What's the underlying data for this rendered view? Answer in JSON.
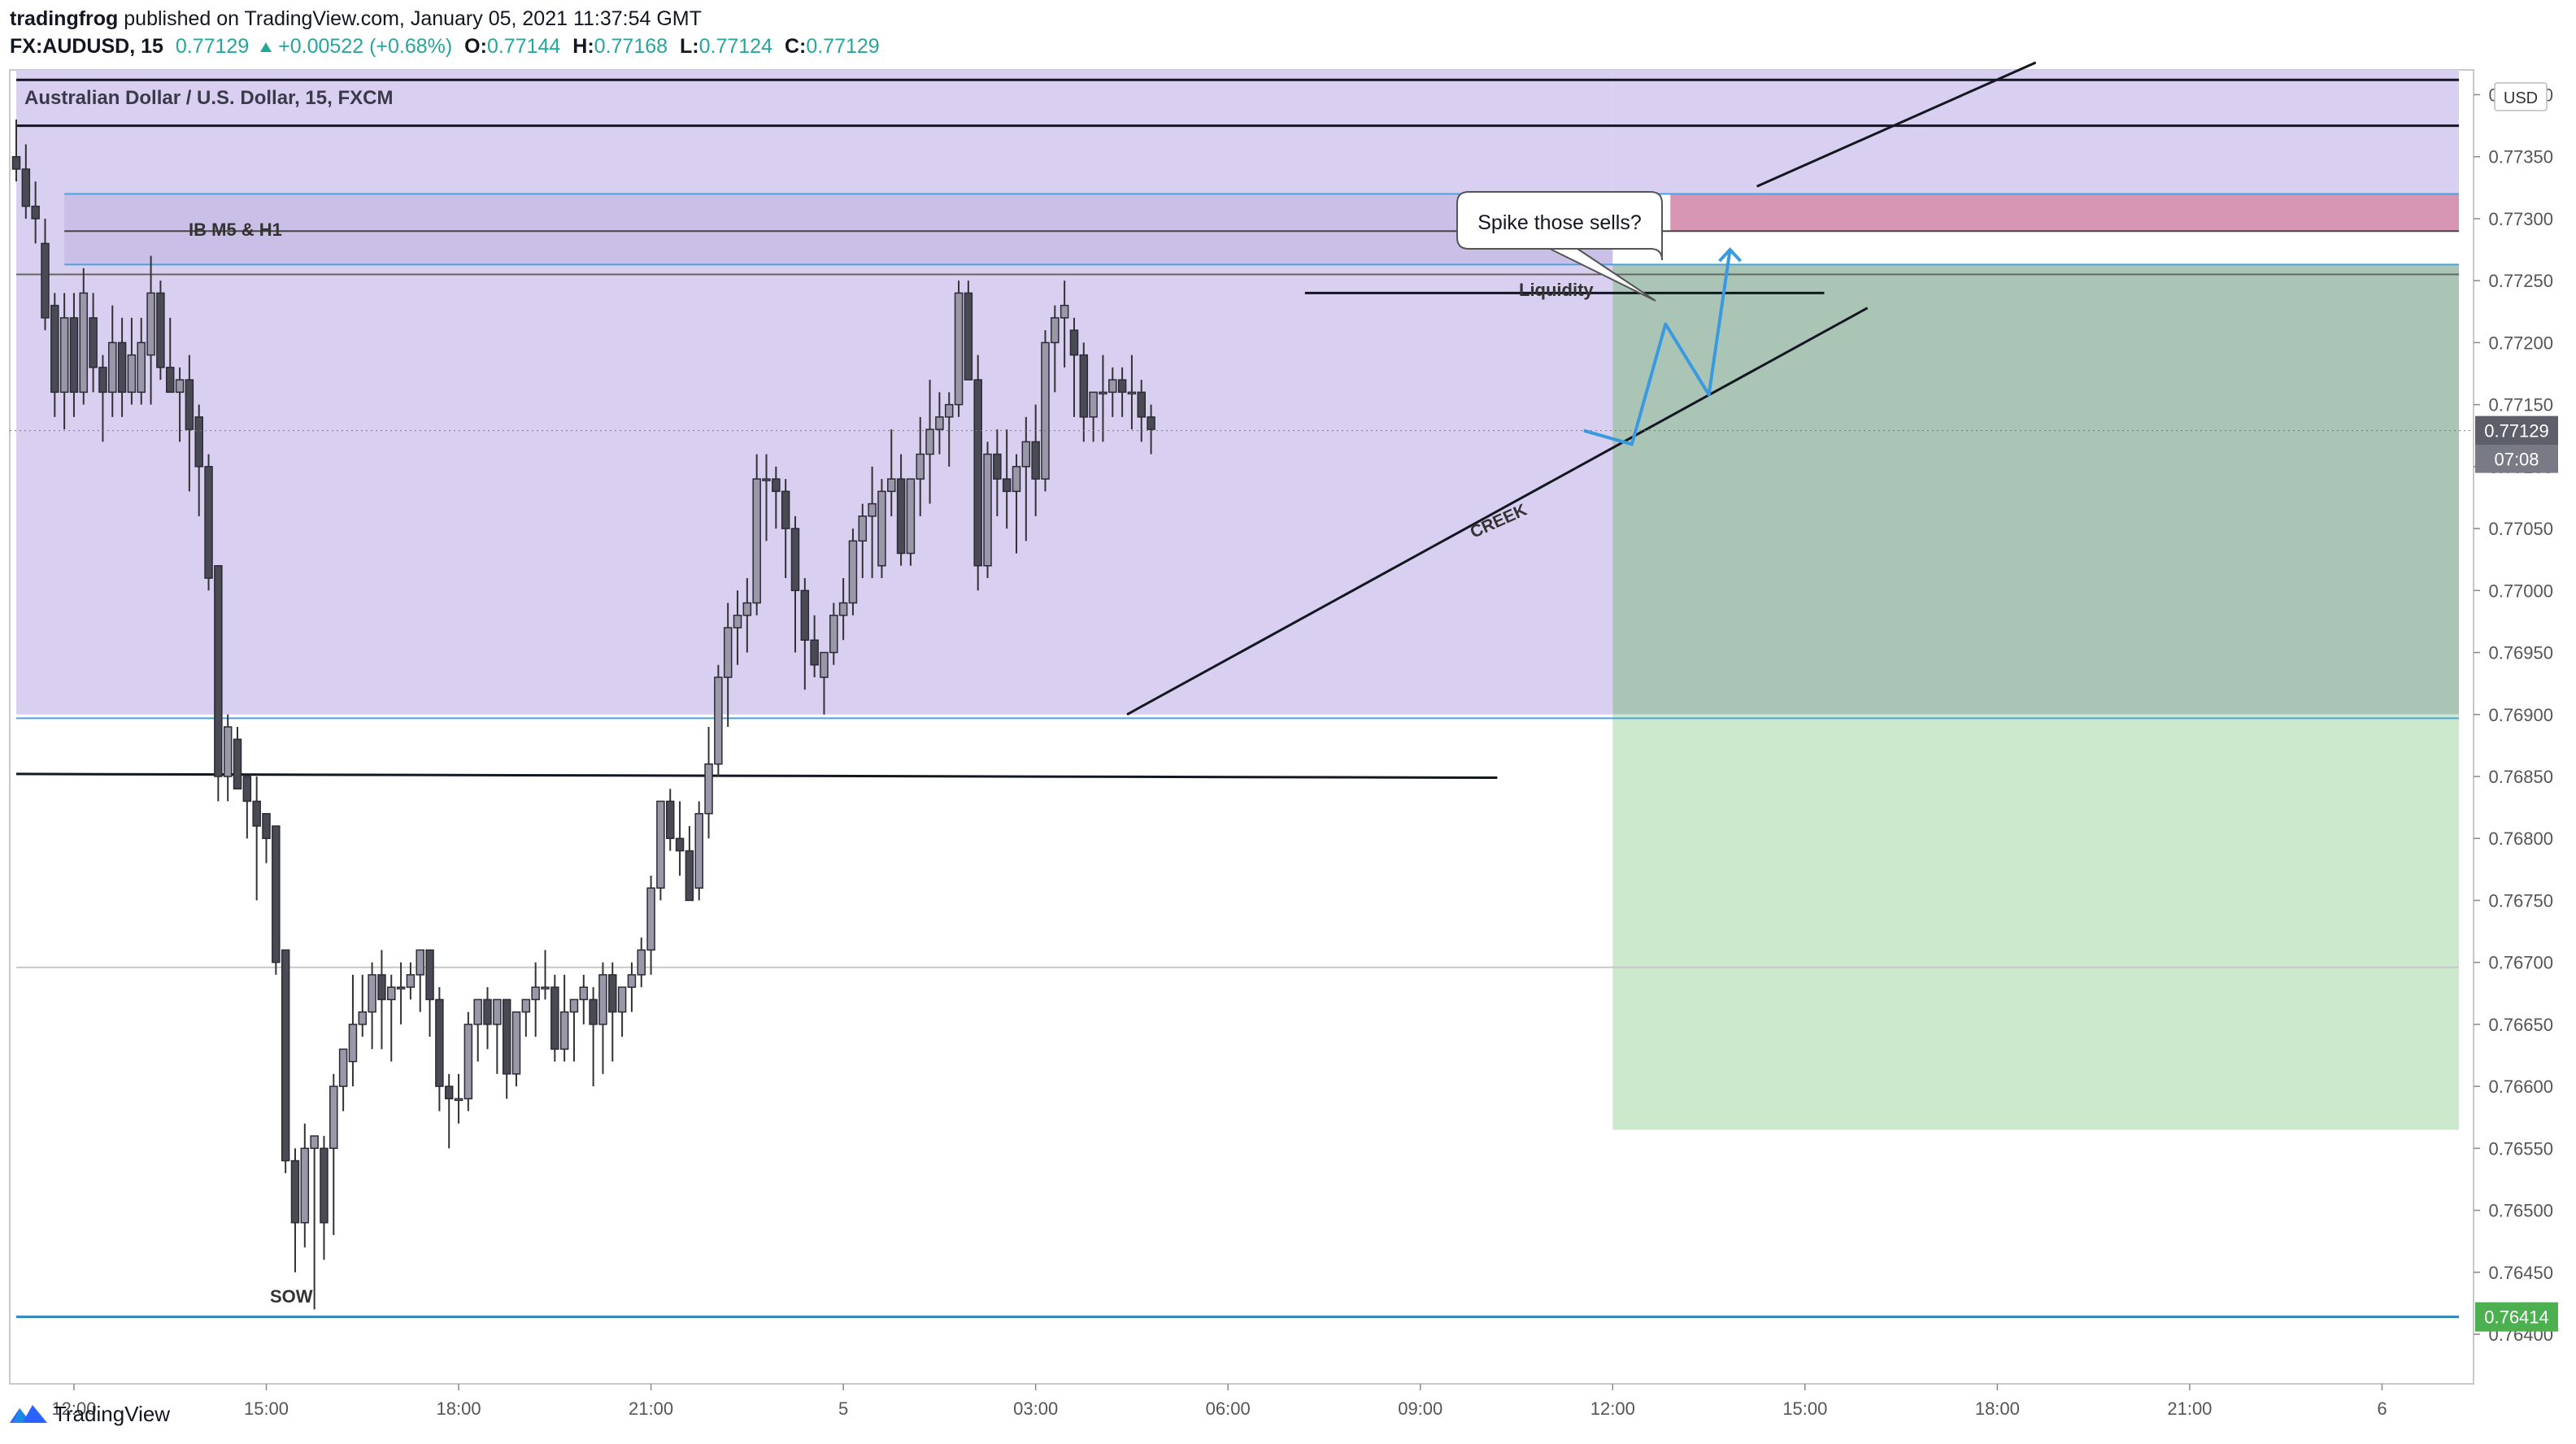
{
  "header": {
    "author": "tradingfrog",
    "published_text": " published on TradingView.com, January 05, 2021 11:37:54 GMT",
    "symbol": "FX:AUDUSD, 15",
    "last": "0.77129",
    "change": "+0.00522 (+0.68%)",
    "o_label": "O:",
    "o": "0.77144",
    "h_label": "H:",
    "h": "0.77168",
    "l_label": "L:",
    "l": "0.77124",
    "c_label": "C:",
    "c": "0.77129"
  },
  "footer": {
    "brand": "TradingView",
    "logo_icon": "tradingview-logo-icon"
  },
  "colors": {
    "up_candle": "#9a97a8",
    "down_candle": "#4a4a55",
    "wick": "#333333",
    "purple_zone": "#d9cff0",
    "pink_zone": "#d796b4",
    "target_zone": "#cce9cd",
    "stop_zone": "#aac5b5",
    "blue_line": "#4aa3df",
    "arrow": "#3a9ae0",
    "price_badge": "#5d606b",
    "low_badge": "#4caf50"
  },
  "chart_data": {
    "type": "candlestick",
    "title": "Australian Dollar / U.S. Dollar, 15, FXCM",
    "currency": "USD",
    "y_range": [
      0.7636,
      0.7742
    ],
    "y_ticks": [
      "0.77400",
      "0.77350",
      "0.77300",
      "0.77250",
      "0.77200",
      "0.77150",
      "0.77100",
      "0.77050",
      "0.77000",
      "0.76950",
      "0.76900",
      "0.76850",
      "0.76800",
      "0.76750",
      "0.76700",
      "0.76650",
      "0.76600",
      "0.76550",
      "0.76500",
      "0.76450",
      "0.76400"
    ],
    "y_tick_values": [
      0.774,
      0.7735,
      0.773,
      0.7725,
      0.772,
      0.7715,
      0.771,
      0.7705,
      0.77,
      0.7695,
      0.769,
      0.7685,
      0.768,
      0.7675,
      0.767,
      0.7665,
      0.766,
      0.7655,
      0.765,
      0.7645,
      0.764
    ],
    "x_range": [
      0,
      254
    ],
    "x_ticks": [
      {
        "label": "12:00",
        "i": 6
      },
      {
        "label": "15:00",
        "i": 26
      },
      {
        "label": "18:00",
        "i": 46
      },
      {
        "label": "21:00",
        "i": 66
      },
      {
        "label": "5",
        "i": 86
      },
      {
        "label": "03:00",
        "i": 106
      },
      {
        "label": "06:00",
        "i": 126
      },
      {
        "label": "09:00",
        "i": 146
      },
      {
        "label": "12:00",
        "i": 166
      },
      {
        "label": "15:00",
        "i": 186
      },
      {
        "label": "18:00",
        "i": 206
      },
      {
        "label": "21:00",
        "i": 226
      },
      {
        "label": "6",
        "i": 246
      }
    ],
    "current_price": "0.77129",
    "current_price_value": 0.77129,
    "countdown": "07:08",
    "low_price_label": "0.76414",
    "low_price_value": 0.76414,
    "candles": [
      [
        0.7735,
        0.7738,
        0.7733,
        0.7734
      ],
      [
        0.7734,
        0.7736,
        0.773,
        0.7731
      ],
      [
        0.7731,
        0.7733,
        0.7728,
        0.773
      ],
      [
        0.7728,
        0.773,
        0.7721,
        0.7722
      ],
      [
        0.7723,
        0.7724,
        0.7714,
        0.7716
      ],
      [
        0.7716,
        0.7724,
        0.7713,
        0.7722
      ],
      [
        0.7722,
        0.7724,
        0.7714,
        0.7716
      ],
      [
        0.7716,
        0.7726,
        0.7715,
        0.7724
      ],
      [
        0.7722,
        0.7724,
        0.7716,
        0.7718
      ],
      [
        0.7718,
        0.7719,
        0.7712,
        0.7716
      ],
      [
        0.7716,
        0.7723,
        0.7714,
        0.772
      ],
      [
        0.772,
        0.7722,
        0.7714,
        0.7716
      ],
      [
        0.7716,
        0.7722,
        0.7715,
        0.7719
      ],
      [
        0.7716,
        0.7722,
        0.7715,
        0.772
      ],
      [
        0.7719,
        0.7727,
        0.7715,
        0.7724
      ],
      [
        0.7724,
        0.7725,
        0.7717,
        0.7718
      ],
      [
        0.7718,
        0.7722,
        0.7716,
        0.7716
      ],
      [
        0.7716,
        0.7718,
        0.7712,
        0.7717
      ],
      [
        0.7717,
        0.7719,
        0.7708,
        0.7713
      ],
      [
        0.7714,
        0.7715,
        0.7706,
        0.771
      ],
      [
        0.771,
        0.7711,
        0.77,
        0.7701
      ],
      [
        0.7702,
        0.7702,
        0.7683,
        0.7685
      ],
      [
        0.7685,
        0.769,
        0.7683,
        0.7689
      ],
      [
        0.7688,
        0.7689,
        0.7684,
        0.7684
      ],
      [
        0.7685,
        0.7685,
        0.768,
        0.7683
      ],
      [
        0.7683,
        0.7685,
        0.7675,
        0.7681
      ],
      [
        0.7682,
        0.7682,
        0.7678,
        0.768
      ],
      [
        0.7681,
        0.7681,
        0.7669,
        0.767
      ],
      [
        0.7671,
        0.7671,
        0.7653,
        0.7654
      ],
      [
        0.7654,
        0.7655,
        0.7645,
        0.7649
      ],
      [
        0.7649,
        0.7657,
        0.7647,
        0.7655
      ],
      [
        0.7655,
        0.7656,
        0.7642,
        0.7656
      ],
      [
        0.7655,
        0.7656,
        0.7646,
        0.7649
      ],
      [
        0.7655,
        0.7661,
        0.7648,
        0.766
      ],
      [
        0.766,
        0.7662,
        0.7658,
        0.7663
      ],
      [
        0.7662,
        0.7669,
        0.766,
        0.7665
      ],
      [
        0.7665,
        0.7669,
        0.7664,
        0.7666
      ],
      [
        0.7666,
        0.767,
        0.7663,
        0.7669
      ],
      [
        0.7669,
        0.7671,
        0.7663,
        0.7667
      ],
      [
        0.7667,
        0.7669,
        0.7662,
        0.7668
      ],
      [
        0.7668,
        0.767,
        0.7665,
        0.7668
      ],
      [
        0.7668,
        0.767,
        0.7667,
        0.7669
      ],
      [
        0.7669,
        0.7671,
        0.7666,
        0.7671
      ],
      [
        0.7671,
        0.7671,
        0.7664,
        0.7667
      ],
      [
        0.7667,
        0.7668,
        0.7658,
        0.766
      ],
      [
        0.766,
        0.7661,
        0.7655,
        0.7659
      ],
      [
        0.7659,
        0.7661,
        0.7657,
        0.7659
      ],
      [
        0.7659,
        0.7666,
        0.7658,
        0.7665
      ],
      [
        0.7665,
        0.7667,
        0.7662,
        0.7667
      ],
      [
        0.7667,
        0.7668,
        0.7663,
        0.7665
      ],
      [
        0.7665,
        0.7667,
        0.7661,
        0.7667
      ],
      [
        0.7667,
        0.7667,
        0.7659,
        0.7661
      ],
      [
        0.7661,
        0.7666,
        0.766,
        0.7666
      ],
      [
        0.7666,
        0.7667,
        0.7664,
        0.7667
      ],
      [
        0.7667,
        0.767,
        0.7664,
        0.7668
      ],
      [
        0.7668,
        0.7671,
        0.7667,
        0.7668
      ],
      [
        0.7668,
        0.7669,
        0.7662,
        0.7663
      ],
      [
        0.7663,
        0.7669,
        0.7662,
        0.7666
      ],
      [
        0.7666,
        0.7667,
        0.7662,
        0.7667
      ],
      [
        0.7667,
        0.7669,
        0.7665,
        0.7668
      ],
      [
        0.7667,
        0.7668,
        0.766,
        0.7665
      ],
      [
        0.7665,
        0.767,
        0.7661,
        0.7669
      ],
      [
        0.7669,
        0.767,
        0.7662,
        0.7666
      ],
      [
        0.7666,
        0.7668,
        0.7664,
        0.7668
      ],
      [
        0.7668,
        0.767,
        0.7666,
        0.7669
      ],
      [
        0.7669,
        0.7672,
        0.7668,
        0.7671
      ],
      [
        0.7671,
        0.7677,
        0.7669,
        0.7676
      ],
      [
        0.7676,
        0.7683,
        0.7675,
        0.7683
      ],
      [
        0.7683,
        0.7684,
        0.7679,
        0.768
      ],
      [
        0.768,
        0.7683,
        0.7677,
        0.7679
      ],
      [
        0.7679,
        0.7681,
        0.7675,
        0.7675
      ],
      [
        0.7676,
        0.7683,
        0.7675,
        0.7682
      ],
      [
        0.7682,
        0.7689,
        0.768,
        0.7686
      ],
      [
        0.7686,
        0.7694,
        0.7685,
        0.7693
      ],
      [
        0.7693,
        0.7699,
        0.7689,
        0.7697
      ],
      [
        0.7697,
        0.77,
        0.7694,
        0.7698
      ],
      [
        0.7698,
        0.7701,
        0.7695,
        0.7699
      ],
      [
        0.7699,
        0.7711,
        0.7698,
        0.7709
      ],
      [
        0.7709,
        0.7711,
        0.7704,
        0.7709
      ],
      [
        0.7709,
        0.771,
        0.7705,
        0.7708
      ],
      [
        0.7708,
        0.7709,
        0.7701,
        0.7705
      ],
      [
        0.7705,
        0.7706,
        0.7695,
        0.77
      ],
      [
        0.77,
        0.7701,
        0.7692,
        0.7696
      ],
      [
        0.7696,
        0.7698,
        0.7693,
        0.7694
      ],
      [
        0.7693,
        0.7695,
        0.769,
        0.7695
      ],
      [
        0.7695,
        0.7699,
        0.7694,
        0.7698
      ],
      [
        0.7698,
        0.7701,
        0.7696,
        0.7699
      ],
      [
        0.7699,
        0.7705,
        0.7698,
        0.7704
      ],
      [
        0.7704,
        0.7707,
        0.7701,
        0.7706
      ],
      [
        0.7706,
        0.771,
        0.7701,
        0.7707
      ],
      [
        0.7702,
        0.7709,
        0.7701,
        0.7708
      ],
      [
        0.7708,
        0.7713,
        0.7706,
        0.7709
      ],
      [
        0.7709,
        0.7711,
        0.7702,
        0.7703
      ],
      [
        0.7703,
        0.7709,
        0.7702,
        0.7709
      ],
      [
        0.7709,
        0.7714,
        0.7706,
        0.7711
      ],
      [
        0.7711,
        0.7717,
        0.7707,
        0.7713
      ],
      [
        0.7713,
        0.7716,
        0.7711,
        0.7714
      ],
      [
        0.7714,
        0.7716,
        0.771,
        0.7715
      ],
      [
        0.7715,
        0.7725,
        0.7714,
        0.7724
      ],
      [
        0.7724,
        0.7725,
        0.7717,
        0.7717
      ],
      [
        0.7717,
        0.7719,
        0.77,
        0.7702
      ],
      [
        0.7702,
        0.7712,
        0.7701,
        0.7711
      ],
      [
        0.7711,
        0.7713,
        0.7706,
        0.7709
      ],
      [
        0.7709,
        0.7713,
        0.7705,
        0.7708
      ],
      [
        0.7708,
        0.7711,
        0.7703,
        0.771
      ],
      [
        0.771,
        0.7714,
        0.7704,
        0.7712
      ],
      [
        0.7712,
        0.7715,
        0.7706,
        0.7709
      ],
      [
        0.7709,
        0.7721,
        0.7708,
        0.772
      ],
      [
        0.772,
        0.7723,
        0.7716,
        0.7722
      ],
      [
        0.7722,
        0.7725,
        0.7718,
        0.7723
      ],
      [
        0.7721,
        0.7722,
        0.7714,
        0.7719
      ],
      [
        0.7719,
        0.772,
        0.7712,
        0.7714
      ],
      [
        0.7714,
        0.7716,
        0.7712,
        0.7716
      ],
      [
        0.7716,
        0.7719,
        0.7712,
        0.7716
      ],
      [
        0.7716,
        0.7718,
        0.7714,
        0.7717
      ],
      [
        0.7717,
        0.7718,
        0.7714,
        0.7716
      ],
      [
        0.7716,
        0.7719,
        0.7713,
        0.7716
      ],
      [
        0.7716,
        0.7717,
        0.7712,
        0.7714
      ],
      [
        0.7714,
        0.7715,
        0.7711,
        0.7713
      ]
    ],
    "zones": [
      {
        "name": "purple-zone",
        "type": "rect",
        "i1": 0,
        "i2": 166,
        "y1": 0.769,
        "y2": 0.7742,
        "color": "#d9cff0"
      },
      {
        "name": "purple-zone-right",
        "type": "rect",
        "i1": 166,
        "i2": 254,
        "y1": 0.7732,
        "y2": 0.7742,
        "color": "#d9cff0"
      },
      {
        "name": "ib-zone",
        "type": "rect",
        "i1": 5,
        "i2": 166,
        "y1": 0.77263,
        "y2": 0.7732,
        "color": "#cabfe6"
      },
      {
        "name": "stop-zone",
        "type": "rect",
        "i1": 166,
        "i2": 254,
        "y1": 0.769,
        "y2": 0.77263,
        "color": "#aac5b5"
      },
      {
        "name": "target-zone",
        "type": "rect",
        "i1": 166,
        "i2": 254,
        "y1": 0.76565,
        "y2": 0.769,
        "color": "#cce9cd"
      },
      {
        "name": "pink-zone",
        "type": "rect",
        "i1": 172,
        "i2": 254,
        "y1": 0.7729,
        "y2": 0.7732,
        "color": "#d796b4"
      }
    ],
    "lines": [
      {
        "name": "top-black-line",
        "i1": 0,
        "i2": 254,
        "y1": 0.77412,
        "y2": 0.77412,
        "color": "#131722",
        "w": 3
      },
      {
        "name": "upper-black-line",
        "i1": 0,
        "i2": 254,
        "y1": 0.77375,
        "y2": 0.77375,
        "color": "#131722",
        "w": 3
      },
      {
        "name": "ib-top-blue-line",
        "i1": 5,
        "i2": 254,
        "y1": 0.7732,
        "y2": 0.7732,
        "color": "#4aa3df",
        "w": 2
      },
      {
        "name": "ib-mid-line",
        "i1": 5,
        "i2": 254,
        "y1": 0.7729,
        "y2": 0.7729,
        "color": "#444444",
        "w": 2
      },
      {
        "name": "ib-bottom-blue-line",
        "i1": 5,
        "i2": 254,
        "y1": 0.77263,
        "y2": 0.77263,
        "color": "#4aa3df",
        "w": 2
      },
      {
        "name": "gray-line-upper",
        "i1": 0,
        "i2": 254,
        "y1": 0.77255,
        "y2": 0.77255,
        "color": "#666666",
        "w": 2
      },
      {
        "name": "liquidity-line",
        "i1": 134,
        "i2": 188,
        "y1": 0.7724,
        "y2": 0.7724,
        "color": "#131722",
        "w": 3
      },
      {
        "name": "blue-support-line",
        "i1": 0,
        "i2": 254,
        "y1": 0.76897,
        "y2": 0.76897,
        "color": "#4aa3df",
        "w": 2
      },
      {
        "name": "black-support-line",
        "i1": 0,
        "i2": 154,
        "y1": 0.76852,
        "y2": 0.76849,
        "color": "#131722",
        "w": 3
      },
      {
        "name": "gray-mid-line",
        "i1": 0,
        "i2": 254,
        "y1": 0.76696,
        "y2": 0.76696,
        "color": "#c8c8c8",
        "w": 2
      },
      {
        "name": "sow-blue-line",
        "i1": 0,
        "i2": 254,
        "y1": 0.76414,
        "y2": 0.76414,
        "color": "#2e86c1",
        "w": 3
      },
      {
        "name": "creek-line",
        "i1": 115.5,
        "i2": 192.5,
        "y1": 0.769,
        "y2": 0.77228,
        "color": "#131722",
        "w": 3
      },
      {
        "name": "trend-line-upper",
        "i1": 181,
        "i2": 210,
        "y1": 0.77326,
        "y2": 0.77426,
        "color": "#131722",
        "w": 3
      }
    ],
    "arrow_path": [
      [
        163,
        0.77129
      ],
      [
        168,
        0.77118
      ],
      [
        171.5,
        0.77215
      ],
      [
        176,
        0.77158
      ],
      [
        178.2,
        0.77275
      ]
    ],
    "annotations": {
      "ib_label": "IB M5 & H1",
      "liquidity_label": "Liquidity",
      "creek_label": "CREEK",
      "sow_label": "SOW",
      "callout": "Spike those sells?"
    }
  }
}
